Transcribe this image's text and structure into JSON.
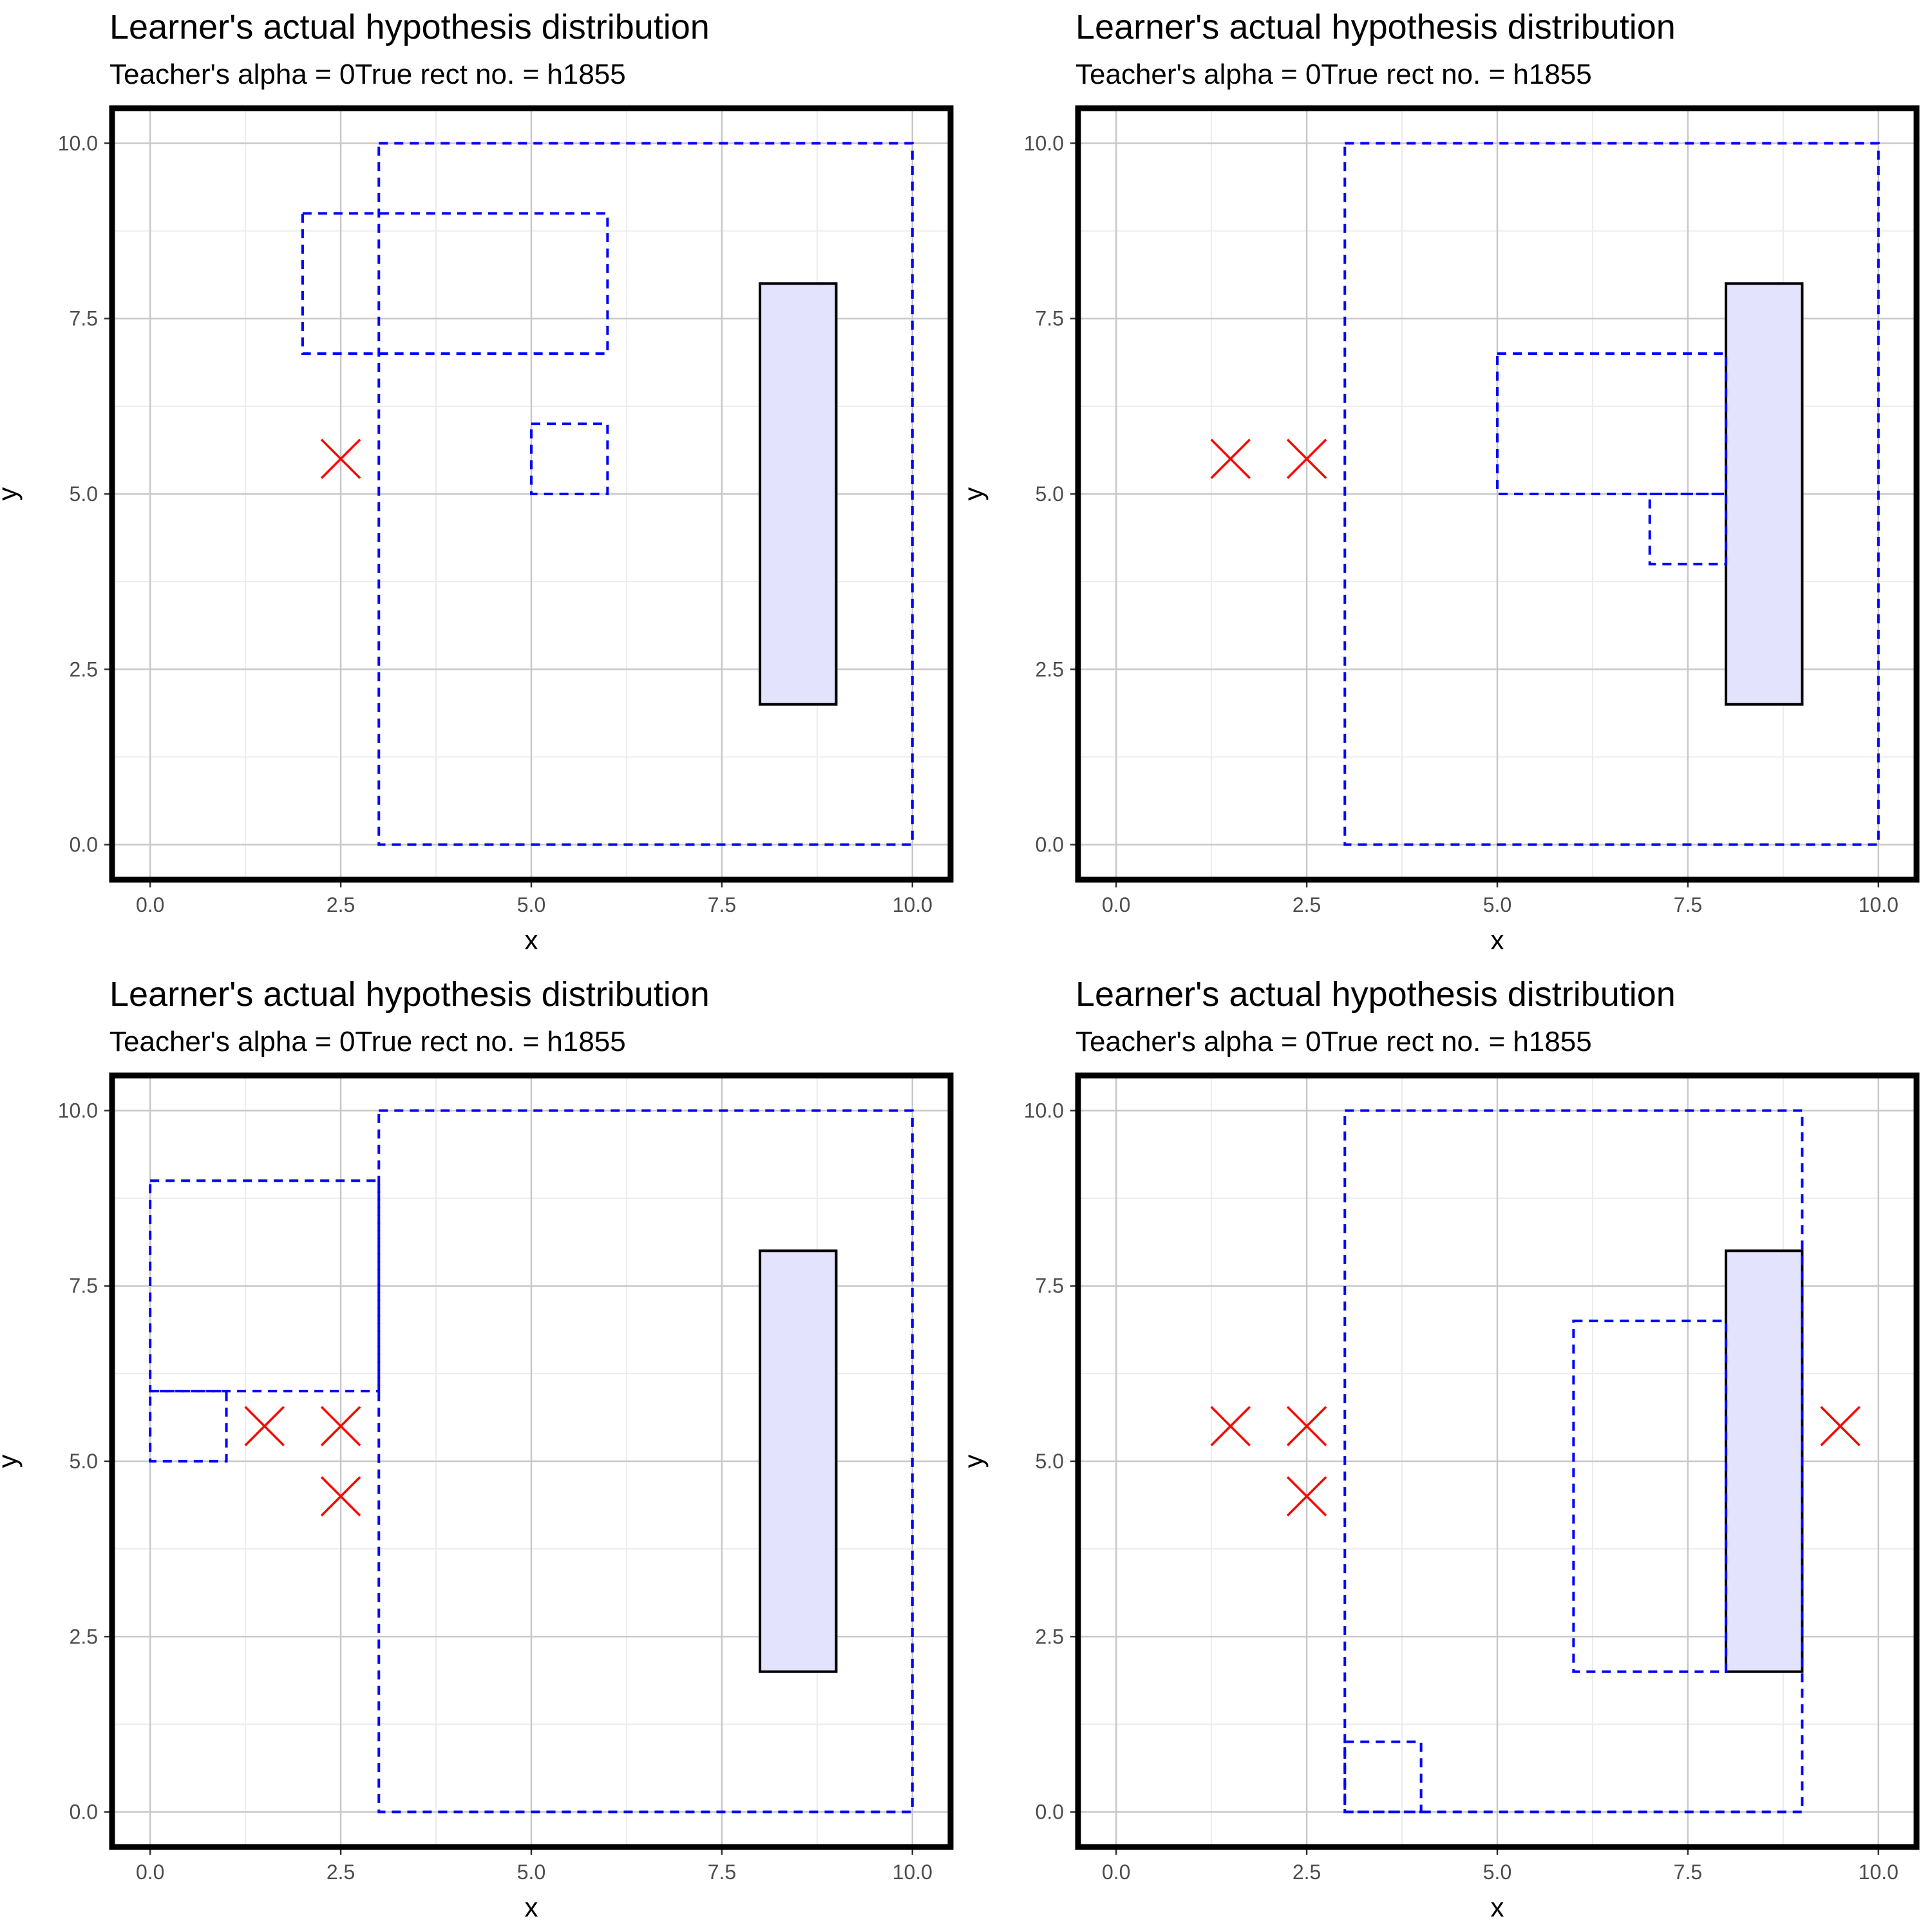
{
  "chart_data": [
    {
      "type": "scatter",
      "title": "Learner's actual hypothesis distribution",
      "subtitle": "Teacher's alpha = 0True rect no. = h1855",
      "xlabel": "x",
      "ylabel": "y",
      "xlim": [
        -0.5,
        10.5
      ],
      "ylim": [
        -0.5,
        10.5
      ],
      "xticks": [
        "0.0",
        "2.5",
        "5.0",
        "7.5",
        "10.0"
      ],
      "yticks": [
        "0.0",
        "2.5",
        "5.0",
        "7.5",
        "10.0"
      ],
      "grid": true,
      "true_rect": {
        "x0": 8,
        "y0": 2,
        "x1": 9,
        "y1": 8
      },
      "hypothesis_rects": [
        {
          "x0": 3,
          "y0": 0,
          "x1": 10,
          "y1": 10
        },
        {
          "x0": 2,
          "y0": 7,
          "x1": 6,
          "y1": 9
        },
        {
          "x0": 5,
          "y0": 5,
          "x1": 6,
          "y1": 6
        }
      ],
      "negative_points": [
        {
          "x": 2.5,
          "y": 5.5
        }
      ]
    },
    {
      "type": "scatter",
      "title": "Learner's actual hypothesis distribution",
      "subtitle": "Teacher's alpha = 0True rect no. = h1855",
      "xlabel": "x",
      "ylabel": "y",
      "xlim": [
        -0.5,
        10.5
      ],
      "ylim": [
        -0.5,
        10.5
      ],
      "xticks": [
        "0.0",
        "2.5",
        "5.0",
        "7.5",
        "10.0"
      ],
      "yticks": [
        "0.0",
        "2.5",
        "5.0",
        "7.5",
        "10.0"
      ],
      "grid": true,
      "true_rect": {
        "x0": 8,
        "y0": 2,
        "x1": 9,
        "y1": 8
      },
      "hypothesis_rects": [
        {
          "x0": 3,
          "y0": 0,
          "x1": 10,
          "y1": 10
        },
        {
          "x0": 5,
          "y0": 5,
          "x1": 8,
          "y1": 7
        },
        {
          "x0": 7,
          "y0": 4,
          "x1": 8,
          "y1": 5
        }
      ],
      "negative_points": [
        {
          "x": 1.5,
          "y": 5.5
        },
        {
          "x": 2.5,
          "y": 5.5
        }
      ]
    },
    {
      "type": "scatter",
      "title": "Learner's actual hypothesis distribution",
      "subtitle": "Teacher's alpha = 0True rect no. = h1855",
      "xlabel": "x",
      "ylabel": "y",
      "xlim": [
        -0.5,
        10.5
      ],
      "ylim": [
        -0.5,
        10.5
      ],
      "xticks": [
        "0.0",
        "2.5",
        "5.0",
        "7.5",
        "10.0"
      ],
      "yticks": [
        "0.0",
        "2.5",
        "5.0",
        "7.5",
        "10.0"
      ],
      "grid": true,
      "true_rect": {
        "x0": 8,
        "y0": 2,
        "x1": 9,
        "y1": 8
      },
      "hypothesis_rects": [
        {
          "x0": 3,
          "y0": 0,
          "x1": 10,
          "y1": 10
        },
        {
          "x0": 0,
          "y0": 6,
          "x1": 3,
          "y1": 9
        },
        {
          "x0": 0,
          "y0": 5,
          "x1": 1,
          "y1": 6
        }
      ],
      "negative_points": [
        {
          "x": 1.5,
          "y": 5.5
        },
        {
          "x": 2.5,
          "y": 5.5
        },
        {
          "x": 2.5,
          "y": 4.5
        }
      ]
    },
    {
      "type": "scatter",
      "title": "Learner's actual hypothesis distribution",
      "subtitle": "Teacher's alpha = 0True rect no. = h1855",
      "xlabel": "x",
      "ylabel": "y",
      "xlim": [
        -0.5,
        10.5
      ],
      "ylim": [
        -0.5,
        10.5
      ],
      "xticks": [
        "0.0",
        "2.5",
        "5.0",
        "7.5",
        "10.0"
      ],
      "yticks": [
        "0.0",
        "2.5",
        "5.0",
        "7.5",
        "10.0"
      ],
      "grid": true,
      "true_rect": {
        "x0": 8,
        "y0": 2,
        "x1": 9,
        "y1": 8
      },
      "hypothesis_rects": [
        {
          "x0": 3,
          "y0": 0,
          "x1": 9,
          "y1": 10
        },
        {
          "x0": 6,
          "y0": 2,
          "x1": 8,
          "y1": 7
        },
        {
          "x0": 3,
          "y0": 0,
          "x1": 4,
          "y1": 1
        }
      ],
      "negative_points": [
        {
          "x": 1.5,
          "y": 5.5
        },
        {
          "x": 2.5,
          "y": 5.5
        },
        {
          "x": 2.5,
          "y": 4.5
        },
        {
          "x": 9.5,
          "y": 5.5
        }
      ]
    }
  ],
  "colors": {
    "hypothesis": "#0000ff",
    "true_rect_fill": "#e3e3fd",
    "true_rect_stroke": "#000000",
    "negative_point": "#ff0000",
    "grid_major": "#c8c8c8",
    "grid_minor": "#ececec",
    "panel_border": "#000000"
  }
}
